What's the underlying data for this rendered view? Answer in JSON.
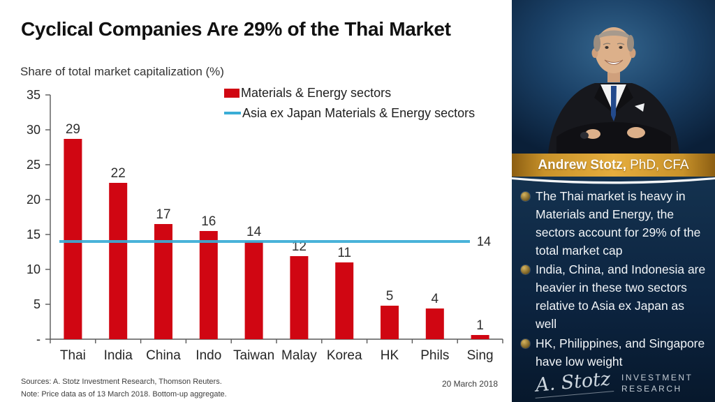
{
  "slide": {
    "title": "Cyclical Companies Are 29% of the Thai Market",
    "date": "20 March 2018",
    "sources": "Sources: A. Stotz Investment Research, Thomson Reuters.",
    "note": "Note: Price data as of 13 March 2018. Bottom-up aggregate."
  },
  "legend": {
    "bar_series": "Materials & Energy sectors",
    "line_series": "Asia ex Japan Materials & Energy sectors"
  },
  "chart_data": {
    "type": "bar",
    "title": "Share of total market capitalization (%)",
    "xlabel": "",
    "ylabel": "Share of total market capitalization (%)",
    "ylim": [
      0,
      35
    ],
    "grid": false,
    "legend_position": "top-center",
    "categories": [
      "Thai",
      "India",
      "China",
      "Indo",
      "Taiwan",
      "Malay",
      "Korea",
      "HK",
      "Phils",
      "Sing"
    ],
    "series": [
      {
        "name": "Materials & Energy sectors",
        "values": [
          28.7,
          22.4,
          16.5,
          15.5,
          14.0,
          11.9,
          11.0,
          4.8,
          4.4,
          0.6
        ]
      }
    ],
    "bar_labels": [
      "29",
      "22",
      "17",
      "16",
      "14",
      "12",
      "11",
      "5",
      "4",
      "1"
    ],
    "reference_line": {
      "name": "Asia ex Japan Materials & Energy sectors",
      "value": 14,
      "label": "14"
    },
    "y_ticks": [
      {
        "v": 35,
        "label": "35"
      },
      {
        "v": 30,
        "label": "30"
      },
      {
        "v": 25,
        "label": "25"
      },
      {
        "v": 20,
        "label": "20"
      },
      {
        "v": 15,
        "label": "15"
      },
      {
        "v": 10,
        "label": "10"
      },
      {
        "v": 5,
        "label": "5"
      },
      {
        "v": 0,
        "label": "-"
      }
    ],
    "colors": {
      "bar": "#d00612",
      "line": "#3aadd6",
      "axis": "#595959",
      "label": "#303030"
    }
  },
  "sidebar": {
    "portrait": "andrew-stotz-photo",
    "name_bold": "Andrew Stotz,",
    "name_rest": "PhD, CFA",
    "bullets": [
      {
        "text": "The Thai market is heavy in Materials and Energy, the sectors account for 29% of the total market cap"
      },
      {
        "text": "India, China, and Indonesia are heavier in these two sectors relative to Asia ex Japan as well"
      },
      {
        "text": "HK, Philippines, and Singapore have low weight"
      }
    ],
    "logo": {
      "signature": "A. Stotz",
      "line1": "INVESTMENT",
      "line2": "RESEARCH"
    }
  }
}
